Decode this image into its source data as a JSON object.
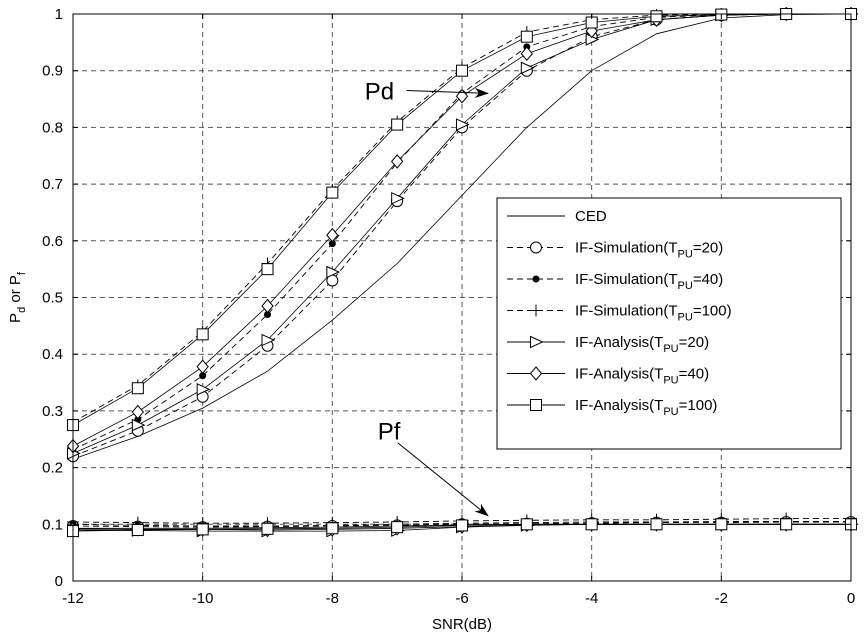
{
  "chart_data": {
    "type": "line",
    "title": "",
    "xlabel": "SNR(dB)",
    "ylabel": {
      "main": "P",
      "sub1": "d",
      "mid": " or P",
      "sub2": "f"
    },
    "xlim": [
      -12,
      0
    ],
    "ylim": [
      0,
      1
    ],
    "xticks": [
      -12,
      -10,
      -8,
      -6,
      -4,
      -2,
      0
    ],
    "yticks": [
      0,
      0.1,
      0.2,
      0.3,
      0.4,
      0.5,
      0.6,
      0.7,
      0.8,
      0.9,
      1
    ],
    "grid": true,
    "legend_position": "right",
    "annotations": [
      {
        "text": "Pd",
        "at": [
          -7.5,
          0.865
        ],
        "arrow_to": [
          -5.6,
          0.86
        ]
      },
      {
        "text": "Pf",
        "at": [
          -7.3,
          0.265
        ],
        "arrow_to": [
          -5.6,
          0.115
        ]
      }
    ],
    "series": [
      {
        "name": "CED",
        "label_main": "CED",
        "label_sub": "",
        "label_tail": "",
        "style": "solid",
        "marker": "none",
        "x": [
          -12,
          -11,
          -10,
          -9,
          -8,
          -7,
          -6,
          -5,
          -4,
          -3,
          -2,
          -1,
          0
        ],
        "y": [
          0.215,
          0.255,
          0.305,
          0.37,
          0.46,
          0.56,
          0.68,
          0.8,
          0.9,
          0.965,
          0.993,
          0.999,
          1.0
        ]
      },
      {
        "name": "IF-Simulation(TPU=20)",
        "label_main": "IF-Simulation(T",
        "label_sub": "PU",
        "label_tail": "=20)",
        "style": "dashed",
        "marker": "circle",
        "x": [
          -12,
          -11,
          -10,
          -9,
          -8,
          -7,
          -6,
          -5,
          -4,
          -3,
          -2,
          -1,
          0
        ],
        "y": [
          0.22,
          0.265,
          0.325,
          0.415,
          0.53,
          0.67,
          0.8,
          0.9,
          0.96,
          0.99,
          0.998,
          1.0,
          1.0
        ]
      },
      {
        "name": "IF-Simulation(TPU=40)",
        "label_main": "IF-Simulation(T",
        "label_sub": "PU",
        "label_tail": "=40)",
        "style": "dashed",
        "marker": "dot",
        "x": [
          -12,
          -11,
          -10,
          -9,
          -8,
          -7,
          -6,
          -5,
          -4,
          -3,
          -2,
          -1,
          0
        ],
        "y": [
          0.232,
          0.285,
          0.362,
          0.47,
          0.595,
          0.738,
          0.86,
          0.942,
          0.978,
          0.994,
          0.999,
          1.0,
          1.0
        ]
      },
      {
        "name": "IF-Simulation(TPU=100)",
        "label_main": "IF-Simulation(T",
        "label_sub": "PU",
        "label_tail": "=100)",
        "style": "dashed",
        "marker": "plus",
        "x": [
          -12,
          -11,
          -10,
          -9,
          -8,
          -7,
          -6,
          -5,
          -4,
          -3,
          -2,
          -1,
          0
        ],
        "y": [
          0.28,
          0.345,
          0.44,
          0.56,
          0.69,
          0.81,
          0.905,
          0.968,
          0.99,
          0.998,
          1.0,
          1.0,
          1.0
        ]
      },
      {
        "name": "IF-Analysis(TPU=20)",
        "label_main": "IF-Analysis(T",
        "label_sub": "PU",
        "label_tail": "=20)",
        "style": "solid",
        "marker": "triangle-right",
        "x": [
          -12,
          -11,
          -10,
          -9,
          -8,
          -7,
          -6,
          -5,
          -4,
          -3,
          -2,
          -1,
          0
        ],
        "y": [
          0.225,
          0.275,
          0.338,
          0.425,
          0.545,
          0.675,
          0.805,
          0.905,
          0.955,
          0.99,
          0.998,
          1.0,
          1.0
        ]
      },
      {
        "name": "IF-Analysis(TPU=40)",
        "label_main": "IF-Analysis(T",
        "label_sub": "PU",
        "label_tail": "=40)",
        "style": "solid",
        "marker": "diamond",
        "x": [
          -12,
          -11,
          -10,
          -9,
          -8,
          -7,
          -6,
          -5,
          -4,
          -3,
          -2,
          -1,
          0
        ],
        "y": [
          0.238,
          0.298,
          0.378,
          0.485,
          0.61,
          0.74,
          0.855,
          0.93,
          0.97,
          0.99,
          0.998,
          1.0,
          1.0
        ]
      },
      {
        "name": "IF-Analysis(TPU=100)",
        "label_main": "IF-Analysis(T",
        "label_sub": "PU",
        "label_tail": "=100)",
        "style": "solid",
        "marker": "square",
        "x": [
          -12,
          -11,
          -10,
          -9,
          -8,
          -7,
          -6,
          -5,
          -4,
          -3,
          -2,
          -1,
          0
        ],
        "y": [
          0.275,
          0.34,
          0.435,
          0.55,
          0.685,
          0.805,
          0.9,
          0.96,
          0.985,
          0.996,
          0.999,
          1.0,
          1.0
        ]
      }
    ],
    "pf_series": [
      {
        "name": "CED",
        "style": "solid",
        "marker": "none",
        "x": [
          -12,
          -11,
          -10,
          -9,
          -8,
          -7,
          -6,
          -5,
          -4,
          -3,
          -2,
          -1,
          0
        ],
        "y": [
          0.093,
          0.093,
          0.093,
          0.094,
          0.095,
          0.097,
          0.099,
          0.1,
          0.1,
          0.1,
          0.1,
          0.1,
          0.1
        ]
      },
      {
        "name": "IF-Simulation(TPU=20)",
        "style": "dashed",
        "marker": "circle",
        "x": [
          -12,
          -11,
          -10,
          -9,
          -8,
          -7,
          -6,
          -5,
          -4,
          -3,
          -2,
          -1,
          0
        ],
        "y": [
          0.097,
          0.096,
          0.095,
          0.096,
          0.097,
          0.098,
          0.1,
          0.101,
          0.102,
          0.103,
          0.103,
          0.104,
          0.104
        ]
      },
      {
        "name": "IF-Simulation(TPU=40)",
        "style": "dashed",
        "marker": "dot",
        "x": [
          -12,
          -11,
          -10,
          -9,
          -8,
          -7,
          -6,
          -5,
          -4,
          -3,
          -2,
          -1,
          0
        ],
        "y": [
          0.1,
          0.098,
          0.097,
          0.097,
          0.098,
          0.1,
          0.102,
          0.103,
          0.104,
          0.104,
          0.105,
          0.105,
          0.105
        ]
      },
      {
        "name": "IF-Simulation(TPU=100)",
        "style": "dashed",
        "marker": "plus",
        "x": [
          -12,
          -11,
          -10,
          -9,
          -8,
          -7,
          -6,
          -5,
          -4,
          -3,
          -2,
          -1,
          0
        ],
        "y": [
          0.104,
          0.103,
          0.102,
          0.102,
          0.103,
          0.104,
          0.106,
          0.107,
          0.108,
          0.108,
          0.109,
          0.11,
          0.11
        ]
      },
      {
        "name": "IF-Analysis(TPU=20)",
        "style": "solid",
        "marker": "triangle-right",
        "x": [
          -12,
          -11,
          -10,
          -9,
          -8,
          -7,
          -6,
          -5,
          -4,
          -3,
          -2,
          -1,
          0
        ],
        "y": [
          0.09,
          0.089,
          0.088,
          0.088,
          0.088,
          0.089,
          0.095,
          0.098,
          0.1,
          0.1,
          0.1,
          0.1,
          0.1
        ]
      },
      {
        "name": "IF-Analysis(TPU=40)",
        "style": "solid",
        "marker": "diamond",
        "x": [
          -12,
          -11,
          -10,
          -9,
          -8,
          -7,
          -6,
          -5,
          -4,
          -3,
          -2,
          -1,
          0
        ],
        "y": [
          0.092,
          0.091,
          0.091,
          0.09,
          0.091,
          0.093,
          0.096,
          0.099,
          0.1,
          0.1,
          0.1,
          0.1,
          0.1
        ]
      },
      {
        "name": "IF-Analysis(TPU=100)",
        "style": "solid",
        "marker": "square",
        "x": [
          -12,
          -11,
          -10,
          -9,
          -8,
          -7,
          -6,
          -5,
          -4,
          -3,
          -2,
          -1,
          0
        ],
        "y": [
          0.088,
          0.09,
          0.091,
          0.092,
          0.093,
          0.095,
          0.098,
          0.1,
          0.1,
          0.1,
          0.1,
          0.1,
          0.1
        ]
      }
    ]
  }
}
